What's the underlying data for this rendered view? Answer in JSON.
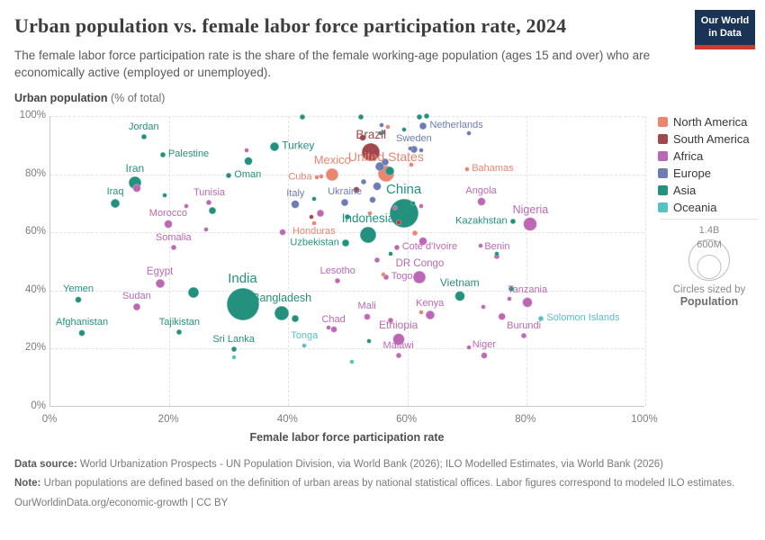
{
  "header": {
    "title": "Urban population vs. female labor force participation rate, 2024",
    "subtitle": "The female labor force participation rate is the share of the female working-age population (ages 15 and over) who are economically active (employed or unemployed).",
    "logo_line1": "Our World",
    "logo_line2": "in Data",
    "logo_bg": "#1b3455",
    "logo_stripe": "#cc3b32"
  },
  "axes": {
    "y_title_bold": "Urban population",
    "y_title_rest": " (% of total)",
    "x_title": "Female labor force participation rate"
  },
  "legend": {
    "items": [
      {
        "key": "north_america",
        "label": "North America"
      },
      {
        "key": "south_america",
        "label": "South America"
      },
      {
        "key": "africa",
        "label": "Africa"
      },
      {
        "key": "europe",
        "label": "Europe"
      },
      {
        "key": "asia",
        "label": "Asia"
      },
      {
        "key": "oceania",
        "label": "Oceania"
      }
    ],
    "colors": {
      "north_america": "#ea8570",
      "south_america": "#a1484e",
      "africa": "#bc68b4",
      "europe": "#6d7cb3",
      "asia": "#24917f",
      "oceania": "#55c2c4"
    }
  },
  "size_legend": {
    "big_label": "1.4B",
    "small_label": "600M",
    "caption": "Circles sized by",
    "caption_bold": "Population"
  },
  "footer": {
    "source_prefix": "Data source:",
    "source_text": " World Urbanization Prospects - UN Population Division, via World Bank (2026); ILO Modelled Estimates, via World Bank (2026)",
    "note_prefix": "Note:",
    "note_text": " Urban populations are defined based on the definition of urban areas by national statistical offices. Labor figures correspond to modeled ILO estimates.",
    "link": "OurWorldinData.org/economic-growth | CC BY"
  },
  "chart_data": {
    "type": "scatter",
    "title": "Urban population vs. female labor force participation rate, 2024",
    "xlabel": "Female labor force participation rate",
    "ylabel": "Urban population (% of total)",
    "xlim": [
      0,
      100
    ],
    "ylim": [
      0,
      100
    ],
    "x_ticks": [
      0,
      20,
      40,
      60,
      80,
      100
    ],
    "y_ticks": [
      0,
      20,
      40,
      60,
      80,
      100
    ],
    "grid": "dashed",
    "legend_position": "right",
    "points": [
      {
        "name": "Jordan",
        "continent": "asia",
        "x": 15.7,
        "y": 92.8,
        "r": 3,
        "anchor": "above"
      },
      {
        "name": "Palestine",
        "continent": "asia",
        "x": 18.9,
        "y": 86.6,
        "r": 3,
        "anchor": "right"
      },
      {
        "name": "Iran",
        "continent": "asia",
        "x": 14.2,
        "y": 77.0,
        "r": 7,
        "anchor": "above",
        "fs": 12
      },
      {
        "name": "Iraq",
        "continent": "asia",
        "x": 10.9,
        "y": 69.9,
        "r": 5,
        "anchor": "above"
      },
      {
        "name": "Oman",
        "continent": "asia",
        "x": 30.0,
        "y": 79.5,
        "r": 3,
        "anchor": "right"
      },
      {
        "name": "Turkey",
        "continent": "asia",
        "x": 37.7,
        "y": 89.4,
        "r": 5,
        "anchor": "right",
        "fs": 12
      },
      {
        "name": "China",
        "continent": "asia",
        "x": 59.4,
        "y": 66.5,
        "r": 16,
        "anchor": "above",
        "fs": 15
      },
      {
        "name": "Indonesia",
        "continent": "asia",
        "x": 53.4,
        "y": 59.0,
        "r": 9,
        "anchor": "above",
        "fs": 13.5
      },
      {
        "name": "India",
        "continent": "asia",
        "x": 32.3,
        "y": 35.4,
        "r": 18,
        "anchor": "above",
        "fs": 15
      },
      {
        "name": "Bangladesh",
        "continent": "asia",
        "x": 38.9,
        "y": 32.3,
        "r": 8,
        "anchor": "above",
        "fs": 12.5
      },
      {
        "name": "Vietnam",
        "continent": "asia",
        "x": 68.8,
        "y": 38.2,
        "r": 5.5,
        "anchor": "above",
        "fs": 12
      },
      {
        "name": "Kazakhstan",
        "continent": "asia",
        "x": 77.7,
        "y": 63.7,
        "r": 3,
        "anchor": "left"
      },
      {
        "name": "Uzbekistan",
        "continent": "asia",
        "x": 49.6,
        "y": 56.5,
        "r": 4,
        "anchor": "left"
      },
      {
        "name": "Tajikistan",
        "continent": "asia",
        "x": 21.7,
        "y": 25.8,
        "r": 3,
        "anchor": "above"
      },
      {
        "name": "Afghanistan",
        "continent": "asia",
        "x": 5.3,
        "y": 25.5,
        "r": 3.5,
        "anchor": "above"
      },
      {
        "name": "Yemen",
        "continent": "asia",
        "x": 4.7,
        "y": 36.9,
        "r": 3.5,
        "anchor": "above"
      },
      {
        "name": "Sri Lanka",
        "continent": "asia",
        "x": 30.8,
        "y": 19.9,
        "r": 3,
        "anchor": "above"
      },
      {
        "name": "Netherlands",
        "continent": "europe",
        "x": 62.7,
        "y": 96.6,
        "r": 4,
        "anchor": "right"
      },
      {
        "name": "Sweden",
        "continent": "europe",
        "x": 61.1,
        "y": 88.5,
        "r": 4,
        "anchor": "above"
      },
      {
        "name": "Italy",
        "continent": "europe",
        "x": 41.2,
        "y": 69.6,
        "r": 4.5,
        "anchor": "above"
      },
      {
        "name": "Ukraine",
        "continent": "europe",
        "x": 49.5,
        "y": 70.3,
        "r": 4,
        "anchor": "above"
      },
      {
        "name": "United States",
        "continent": "north_america",
        "x": 56.4,
        "y": 80.1,
        "r": 9,
        "anchor": "above",
        "fs": 14
      },
      {
        "name": "Mexico",
        "continent": "north_america",
        "x": 47.4,
        "y": 79.8,
        "r": 7,
        "anchor": "above",
        "fs": 13
      },
      {
        "name": "Cuba",
        "continent": "north_america",
        "x": 44.8,
        "y": 78.9,
        "r": 2.5,
        "anchor": "left"
      },
      {
        "name": "Honduras",
        "continent": "north_america",
        "x": 44.3,
        "y": 63.3,
        "r": 2.5,
        "anchor": "below"
      },
      {
        "name": "Bahamas",
        "continent": "north_america",
        "x": 70.0,
        "y": 81.7,
        "r": 2.5,
        "anchor": "right"
      },
      {
        "name": "Brazil",
        "continent": "south_america",
        "x": 53.9,
        "y": 87.6,
        "r": 10,
        "anchor": "above",
        "fs": 13.5
      },
      {
        "name": "Tunisia",
        "continent": "africa",
        "x": 26.7,
        "y": 70.2,
        "r": 3,
        "anchor": "above"
      },
      {
        "name": "Morocco",
        "continent": "africa",
        "x": 19.8,
        "y": 62.7,
        "r": 4.5,
        "anchor": "above"
      },
      {
        "name": "Somalia",
        "continent": "africa",
        "x": 20.7,
        "y": 54.7,
        "r": 3,
        "anchor": "above"
      },
      {
        "name": "Egypt",
        "continent": "africa",
        "x": 18.4,
        "y": 42.5,
        "r": 5,
        "anchor": "above",
        "fs": 11.5
      },
      {
        "name": "Sudan",
        "continent": "africa",
        "x": 14.5,
        "y": 34.5,
        "r": 4,
        "anchor": "above"
      },
      {
        "name": "Nigeria",
        "continent": "africa",
        "x": 80.7,
        "y": 62.7,
        "r": 7.5,
        "anchor": "above",
        "fs": 12.5
      },
      {
        "name": "Angola",
        "continent": "africa",
        "x": 72.4,
        "y": 70.5,
        "r": 4.5,
        "anchor": "above"
      },
      {
        "name": "Benin",
        "continent": "africa",
        "x": 75.1,
        "y": 51.6,
        "r": 3,
        "anchor": "above"
      },
      {
        "name": "Cote d'Ivoire",
        "continent": "africa",
        "x": 58.2,
        "y": 54.7,
        "r": 3,
        "anchor": "right"
      },
      {
        "name": "DR Congo",
        "continent": "africa",
        "x": 62.1,
        "y": 44.7,
        "r": 7,
        "anchor": "above",
        "fs": 11.5
      },
      {
        "name": "Lesotho",
        "continent": "africa",
        "x": 48.3,
        "y": 43.2,
        "r": 3,
        "anchor": "above"
      },
      {
        "name": "Togo",
        "continent": "africa",
        "x": 56.4,
        "y": 44.6,
        "r": 3,
        "anchor": "right"
      },
      {
        "name": "Mali",
        "continent": "africa",
        "x": 53.2,
        "y": 31.1,
        "r": 3.5,
        "anchor": "above"
      },
      {
        "name": "Chad",
        "continent": "africa",
        "x": 47.6,
        "y": 26.6,
        "r": 3.5,
        "anchor": "above"
      },
      {
        "name": "Kenya",
        "continent": "africa",
        "x": 63.8,
        "y": 31.7,
        "r": 5,
        "anchor": "above"
      },
      {
        "name": "Ethiopia",
        "continent": "africa",
        "x": 58.5,
        "y": 23.3,
        "r": 6.5,
        "anchor": "above",
        "fs": 12
      },
      {
        "name": "Malawi",
        "continent": "africa",
        "x": 58.5,
        "y": 17.7,
        "r": 3,
        "anchor": "above"
      },
      {
        "name": "Niger",
        "continent": "africa",
        "x": 72.9,
        "y": 17.7,
        "r": 3.5,
        "anchor": "above"
      },
      {
        "name": "Burundi",
        "continent": "africa",
        "x": 79.6,
        "y": 24.5,
        "r": 3,
        "anchor": "above"
      },
      {
        "name": "Tanzania",
        "continent": "africa",
        "x": 80.2,
        "y": 36.0,
        "r": 5.5,
        "anchor": "above"
      },
      {
        "name": "Tonga",
        "continent": "oceania",
        "x": 42.7,
        "y": 21.1,
        "r": 2.5,
        "anchor": "above"
      },
      {
        "name": "Solomon Islands",
        "continent": "oceania",
        "x": 82.5,
        "y": 30.4,
        "r": 3,
        "anchor": "right"
      },
      {
        "name": "",
        "continent": "africa",
        "x": 14.5,
        "y": 75.2,
        "r": 4.5
      },
      {
        "name": "",
        "continent": "africa",
        "x": 22.9,
        "y": 69.0,
        "r": 2.5
      },
      {
        "name": "",
        "continent": "africa",
        "x": 26.2,
        "y": 60.9,
        "r": 2.5
      },
      {
        "name": "",
        "continent": "africa",
        "x": 33.0,
        "y": 88.2,
        "r": 2.5
      },
      {
        "name": "",
        "continent": "africa",
        "x": 39.1,
        "y": 60.2,
        "r": 3.5
      },
      {
        "name": "",
        "continent": "africa",
        "x": 45.4,
        "y": 66.5,
        "r": 4
      },
      {
        "name": "",
        "continent": "africa",
        "x": 54.9,
        "y": 50.6,
        "r": 3
      },
      {
        "name": "",
        "continent": "africa",
        "x": 57.2,
        "y": 29.6,
        "r": 3
      },
      {
        "name": "",
        "continent": "africa",
        "x": 58.0,
        "y": 68.5,
        "r": 2.5
      },
      {
        "name": "",
        "continent": "africa",
        "x": 62.3,
        "y": 69.0,
        "r": 2.5
      },
      {
        "name": "",
        "continent": "africa",
        "x": 62.7,
        "y": 57.1,
        "r": 4.5
      },
      {
        "name": "",
        "continent": "africa",
        "x": 70.3,
        "y": 20.5,
        "r": 2.5
      },
      {
        "name": "",
        "continent": "africa",
        "x": 72.8,
        "y": 34.5,
        "r": 2.5
      },
      {
        "name": "",
        "continent": "africa",
        "x": 77.2,
        "y": 37.0,
        "r": 2.5
      },
      {
        "name": "",
        "continent": "africa",
        "x": 75.9,
        "y": 31.1,
        "r": 4.3
      },
      {
        "name": "",
        "continent": "africa",
        "x": 72.3,
        "y": 55.3,
        "r": 2.5
      },
      {
        "name": "",
        "continent": "africa",
        "x": 46.8,
        "y": 27.3,
        "r": 2.5
      },
      {
        "name": "",
        "continent": "asia",
        "x": 19.2,
        "y": 72.7,
        "r": 2.5
      },
      {
        "name": "",
        "continent": "asia",
        "x": 27.3,
        "y": 67.4,
        "r": 4
      },
      {
        "name": "",
        "continent": "asia",
        "x": 33.3,
        "y": 84.5,
        "r": 4.5
      },
      {
        "name": "",
        "continent": "asia",
        "x": 24.0,
        "y": 39.4,
        "r": 6
      },
      {
        "name": "",
        "continent": "asia",
        "x": 42.4,
        "y": 99.7,
        "r": 3
      },
      {
        "name": "",
        "continent": "asia",
        "x": 52.2,
        "y": 99.7,
        "r": 3
      },
      {
        "name": "",
        "continent": "asia",
        "x": 62.0,
        "y": 99.7,
        "r": 3
      },
      {
        "name": "",
        "continent": "asia",
        "x": 63.2,
        "y": 99.9,
        "r": 3
      },
      {
        "name": "",
        "continent": "asia",
        "x": 55.5,
        "y": 94.0,
        "r": 2.5
      },
      {
        "name": "",
        "continent": "asia",
        "x": 59.4,
        "y": 95.3,
        "r": 2.5
      },
      {
        "name": "",
        "continent": "asia",
        "x": 57.0,
        "y": 81.0,
        "r": 5
      },
      {
        "name": "",
        "continent": "asia",
        "x": 44.3,
        "y": 71.4,
        "r": 2.5
      },
      {
        "name": "",
        "continent": "asia",
        "x": 49.9,
        "y": 65.2,
        "r": 3
      },
      {
        "name": "",
        "continent": "asia",
        "x": 57.2,
        "y": 52.5,
        "r": 2.5
      },
      {
        "name": "",
        "continent": "asia",
        "x": 53.6,
        "y": 22.7,
        "r": 2.5
      },
      {
        "name": "",
        "continent": "asia",
        "x": 75.1,
        "y": 52.5,
        "r": 2.5
      },
      {
        "name": "",
        "continent": "asia",
        "x": 77.4,
        "y": 40.7,
        "r": 3
      },
      {
        "name": "",
        "continent": "asia",
        "x": 41.2,
        "y": 30.4,
        "r": 4
      },
      {
        "name": "",
        "continent": "asia",
        "x": 61.0,
        "y": 70.0,
        "r": 2.5
      },
      {
        "name": "",
        "continent": "europe",
        "x": 56.0,
        "y": 94.5,
        "r": 2.5
      },
      {
        "name": "",
        "continent": "europe",
        "x": 55.7,
        "y": 96.9,
        "r": 2.5
      },
      {
        "name": "",
        "continent": "europe",
        "x": 70.3,
        "y": 94.1,
        "r": 2.5
      },
      {
        "name": "",
        "continent": "europe",
        "x": 62.4,
        "y": 88.2,
        "r": 2.5
      },
      {
        "name": "",
        "continent": "europe",
        "x": 60.5,
        "y": 88.7,
        "r": 2.5
      },
      {
        "name": "",
        "continent": "europe",
        "x": 56.3,
        "y": 84.2,
        "r": 4
      },
      {
        "name": "",
        "continent": "europe",
        "x": 55.4,
        "y": 82.6,
        "r": 5
      },
      {
        "name": "",
        "continent": "europe",
        "x": 54.9,
        "y": 75.8,
        "r": 4.5
      },
      {
        "name": "",
        "continent": "europe",
        "x": 52.6,
        "y": 77.5,
        "r": 3
      },
      {
        "name": "",
        "continent": "europe",
        "x": 54.1,
        "y": 71.1,
        "r": 3.5
      },
      {
        "name": "",
        "continent": "north_america",
        "x": 45.6,
        "y": 79.2,
        "r": 2.5
      },
      {
        "name": "",
        "continent": "north_america",
        "x": 56.7,
        "y": 96.3,
        "r": 2.5
      },
      {
        "name": "",
        "continent": "north_america",
        "x": 60.6,
        "y": 83.2,
        "r": 2.5
      },
      {
        "name": "",
        "continent": "north_america",
        "x": 53.7,
        "y": 66.5,
        "r": 2.5
      },
      {
        "name": "",
        "continent": "north_america",
        "x": 61.2,
        "y": 59.6,
        "r": 3
      },
      {
        "name": "",
        "continent": "north_america",
        "x": 62.4,
        "y": 32.6,
        "r": 2.5
      },
      {
        "name": "",
        "continent": "north_america",
        "x": 56.0,
        "y": 45.5,
        "r": 2.5
      },
      {
        "name": "",
        "continent": "south_america",
        "x": 52.5,
        "y": 92.5,
        "r": 3.5
      },
      {
        "name": "",
        "continent": "south_america",
        "x": 51.4,
        "y": 74.5,
        "r": 3.5
      },
      {
        "name": "",
        "continent": "south_america",
        "x": 43.9,
        "y": 65.2,
        "r": 2.5
      },
      {
        "name": "",
        "continent": "south_america",
        "x": 58.5,
        "y": 63.5,
        "r": 3
      },
      {
        "name": "",
        "continent": "oceania",
        "x": 30.9,
        "y": 17.1,
        "r": 2.5
      },
      {
        "name": "",
        "continent": "oceania",
        "x": 50.7,
        "y": 15.5,
        "r": 2.5
      }
    ]
  }
}
